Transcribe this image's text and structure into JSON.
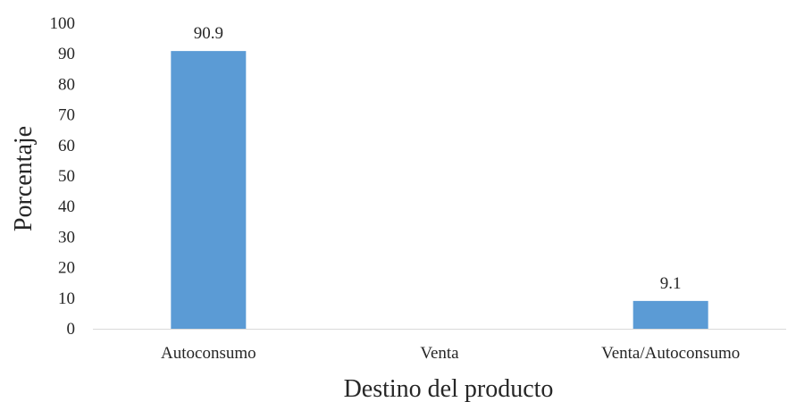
{
  "chart_data": {
    "type": "bar",
    "categories": [
      "Autoconsumo",
      "Venta",
      "Venta/Autoconsumo"
    ],
    "values": [
      90.9,
      0,
      9.1
    ],
    "data_labels": [
      "90.9",
      "",
      "9.1"
    ],
    "title": "",
    "xlabel": "Destino del producto",
    "ylabel": "Porcentaje",
    "ylim": [
      0,
      100
    ],
    "yticks": [
      0,
      10,
      20,
      30,
      40,
      50,
      60,
      70,
      80,
      90,
      100
    ],
    "grid": false,
    "legend": "none",
    "bar_color": "#5b9bd5",
    "axis_color": "#d9d9d9"
  }
}
